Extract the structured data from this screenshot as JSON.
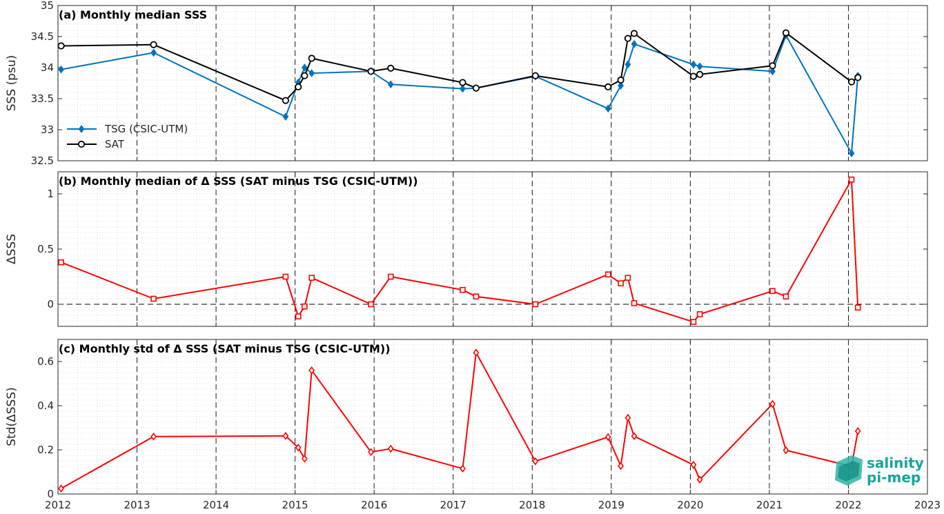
{
  "chart_data": [
    {
      "type": "line",
      "title": "(a) Monthly median SSS",
      "ylabel": "SSS (psu)",
      "xlim": [
        2012,
        2023
      ],
      "ylim": [
        32.5,
        35
      ],
      "xticks": [
        "2012",
        "2013",
        "2014",
        "2015",
        "2016",
        "2017",
        "2018",
        "2019",
        "2020",
        "2021",
        "2022",
        "2023"
      ],
      "yticks": [
        "32.5",
        "33",
        "33.5",
        "34",
        "34.5",
        "35"
      ],
      "legend": {
        "placement": "bottom-left"
      },
      "grid": true,
      "series": [
        {
          "name": "TSG (CSIC-UTM)",
          "color": "#0072bd",
          "marker": "diamond",
          "x": [
            2012.04,
            2013.21,
            2014.88,
            2015.04,
            2015.12,
            2015.21,
            2015.96,
            2016.21,
            2017.12,
            2017.29,
            2018.04,
            2018.96,
            2019.12,
            2019.21,
            2019.29,
            2020.04,
            2020.12,
            2021.04,
            2021.21,
            2022.04,
            2022.12
          ],
          "y": [
            33.97,
            34.24,
            33.21,
            33.76,
            34.0,
            33.91,
            33.94,
            33.73,
            33.66,
            33.67,
            33.86,
            33.34,
            33.71,
            34.05,
            34.38,
            34.05,
            34.02,
            33.94,
            34.52,
            32.62,
            33.87
          ]
        },
        {
          "name": "SAT",
          "color": "#000000",
          "marker": "circle",
          "x": [
            2012.04,
            2013.21,
            2014.88,
            2015.04,
            2015.12,
            2015.21,
            2015.96,
            2016.21,
            2017.12,
            2017.29,
            2018.04,
            2018.96,
            2019.12,
            2019.21,
            2019.29,
            2020.04,
            2020.12,
            2021.04,
            2021.21,
            2022.04,
            2022.12
          ],
          "y": [
            34.35,
            34.37,
            33.47,
            33.69,
            33.87,
            34.15,
            33.94,
            33.99,
            33.76,
            33.67,
            33.87,
            33.69,
            33.8,
            34.47,
            34.55,
            33.86,
            33.89,
            34.03,
            34.56,
            33.77,
            33.84
          ]
        }
      ]
    },
    {
      "type": "line",
      "title": "(b) Monthly median of Δ SSS (SAT minus TSG (CSIC-UTM))",
      "ylabel": "ΔSSS",
      "xlim": [
        2012,
        2023
      ],
      "ylim": [
        -0.2,
        1.2
      ],
      "xticks": [
        "2012",
        "2013",
        "2014",
        "2015",
        "2016",
        "2017",
        "2018",
        "2019",
        "2020",
        "2021",
        "2022",
        "2023"
      ],
      "yticks": [
        "0",
        "0.5",
        "1"
      ],
      "reference_line": 0,
      "grid": true,
      "series": [
        {
          "color": "#ff0000",
          "marker": "square",
          "x": [
            2012.04,
            2013.21,
            2014.88,
            2015.04,
            2015.12,
            2015.21,
            2015.96,
            2016.21,
            2017.12,
            2017.29,
            2018.04,
            2018.96,
            2019.12,
            2019.21,
            2019.29,
            2020.04,
            2020.12,
            2021.04,
            2021.21,
            2022.04,
            2022.12
          ],
          "y": [
            0.38,
            0.05,
            0.25,
            -0.11,
            -0.02,
            0.24,
            0.0,
            0.25,
            0.13,
            0.07,
            0.0,
            0.27,
            0.19,
            0.24,
            0.01,
            -0.16,
            -0.09,
            0.12,
            0.07,
            1.13,
            -0.03
          ]
        }
      ]
    },
    {
      "type": "line",
      "title": "(c) Monthly std of Δ SSS (SAT minus TSG (CSIC-UTM))",
      "ylabel": "Std(ΔSSS)",
      "xlim": [
        2012,
        2023
      ],
      "ylim": [
        0,
        0.7
      ],
      "xticks": [
        "2012",
        "2013",
        "2014",
        "2015",
        "2016",
        "2017",
        "2018",
        "2019",
        "2020",
        "2021",
        "2022",
        "2023"
      ],
      "yticks": [
        "0",
        "0.2",
        "0.4",
        "0.6"
      ],
      "grid": true,
      "series": [
        {
          "color": "#ff0000",
          "marker": "diamond",
          "x": [
            2012.04,
            2013.21,
            2014.88,
            2015.04,
            2015.12,
            2015.21,
            2015.96,
            2016.21,
            2017.12,
            2017.29,
            2018.04,
            2018.96,
            2019.12,
            2019.21,
            2019.29,
            2020.04,
            2020.12,
            2021.04,
            2021.21,
            2022.04,
            2022.12
          ],
          "y": [
            0.025,
            0.26,
            0.263,
            0.21,
            0.16,
            0.56,
            0.19,
            0.205,
            0.115,
            0.64,
            0.148,
            0.258,
            0.127,
            0.345,
            0.262,
            0.132,
            0.065,
            0.408,
            0.198,
            0.125,
            0.285
          ]
        }
      ]
    }
  ],
  "logo": {
    "line1": "salinity",
    "line2": "pi-mep"
  }
}
